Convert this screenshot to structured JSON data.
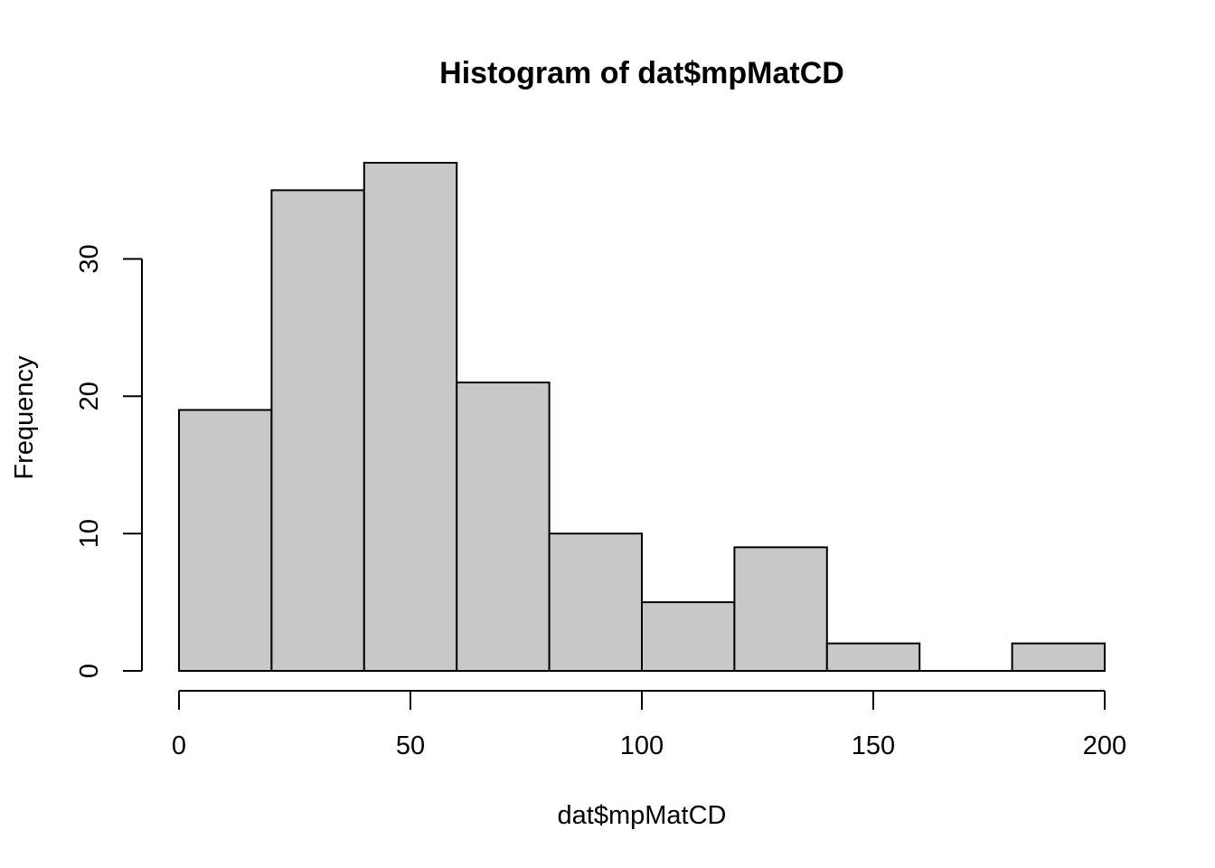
{
  "chart_data": {
    "type": "bar",
    "subtype": "histogram",
    "title": "Histogram of dat$mpMatCD",
    "xlabel": "dat$mpMatCD",
    "ylabel": "Frequency",
    "bins": [
      {
        "from": 0,
        "to": 20,
        "count": 19
      },
      {
        "from": 20,
        "to": 40,
        "count": 35
      },
      {
        "from": 40,
        "to": 60,
        "count": 37
      },
      {
        "from": 60,
        "to": 80,
        "count": 21
      },
      {
        "from": 80,
        "to": 100,
        "count": 10
      },
      {
        "from": 100,
        "to": 120,
        "count": 5
      },
      {
        "from": 120,
        "to": 140,
        "count": 9
      },
      {
        "from": 140,
        "to": 160,
        "count": 2
      },
      {
        "from": 160,
        "to": 180,
        "count": 0
      },
      {
        "from": 180,
        "to": 200,
        "count": 2
      }
    ],
    "xlim": [
      0,
      200
    ],
    "ylim": [
      0,
      37
    ],
    "x_ticks": [
      0,
      50,
      100,
      150,
      200
    ],
    "y_ticks": [
      0,
      10,
      20,
      30
    ],
    "bar_color": "#c8c8c8",
    "border_color": "#000000",
    "grid": false,
    "legend": "none"
  }
}
